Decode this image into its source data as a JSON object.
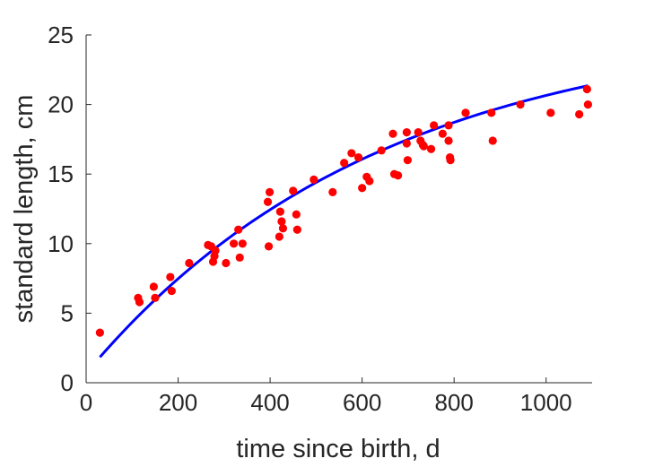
{
  "chart_data": {
    "type": "scatter",
    "xlabel": "time since birth, d",
    "ylabel": "standard length, cm",
    "xlim": [
      0,
      1100
    ],
    "ylim": [
      0,
      25
    ],
    "xticks": [
      0,
      200,
      400,
      600,
      800,
      1000
    ],
    "yticks": [
      0,
      5,
      10,
      15,
      20,
      25
    ],
    "grid": false,
    "colors": {
      "points": "#ff0000",
      "fit": "#0000ff",
      "axis": "#262626"
    },
    "series": [
      {
        "type": "scatter",
        "points": [
          [
            30,
            3.6
          ],
          [
            113,
            6.1
          ],
          [
            116,
            5.8
          ],
          [
            147,
            6.9
          ],
          [
            150,
            6.1
          ],
          [
            183,
            7.6
          ],
          [
            186,
            6.6
          ],
          [
            224,
            8.6
          ],
          [
            265,
            9.9
          ],
          [
            272,
            9.8
          ],
          [
            276,
            8.7
          ],
          [
            279,
            9.1
          ],
          [
            281,
            9.5
          ],
          [
            304,
            8.6
          ],
          [
            321,
            10.0
          ],
          [
            331,
            11.0
          ],
          [
            334,
            9.0
          ],
          [
            340,
            10.0
          ],
          [
            395,
            13.0
          ],
          [
            397,
            9.8
          ],
          [
            399,
            13.7
          ],
          [
            420,
            10.5
          ],
          [
            422,
            12.3
          ],
          [
            425,
            11.6
          ],
          [
            428,
            11.1
          ],
          [
            450,
            13.8
          ],
          [
            457,
            12.1
          ],
          [
            459,
            11.0
          ],
          [
            495,
            14.6
          ],
          [
            536,
            13.7
          ],
          [
            561,
            15.8
          ],
          [
            577,
            16.5
          ],
          [
            592,
            16.2
          ],
          [
            600,
            14.0
          ],
          [
            610,
            14.8
          ],
          [
            616,
            14.5
          ],
          [
            642,
            16.7
          ],
          [
            667,
            17.9
          ],
          [
            670,
            15.0
          ],
          [
            678,
            14.9
          ],
          [
            697,
            18.0
          ],
          [
            697,
            17.2
          ],
          [
            699,
            16.0
          ],
          [
            722,
            18.0
          ],
          [
            727,
            17.4
          ],
          [
            732,
            17.1
          ],
          [
            734,
            17.0
          ],
          [
            750,
            16.8
          ],
          [
            756,
            18.5
          ],
          [
            775,
            17.9
          ],
          [
            788,
            18.5
          ],
          [
            788,
            17.4
          ],
          [
            791,
            16.2
          ],
          [
            792,
            16.0
          ],
          [
            825,
            19.4
          ],
          [
            881,
            19.4
          ],
          [
            884,
            17.4
          ],
          [
            944,
            20.0
          ],
          [
            1010,
            19.4
          ],
          [
            1072,
            19.3
          ],
          [
            1089,
            21.1
          ],
          [
            1091,
            20.0
          ]
        ]
      },
      {
        "type": "line",
        "fit": {
          "x0": 30,
          "x1": 1091,
          "linf": 25.9,
          "k": 0.00157,
          "l0": 1.84
        }
      }
    ]
  }
}
